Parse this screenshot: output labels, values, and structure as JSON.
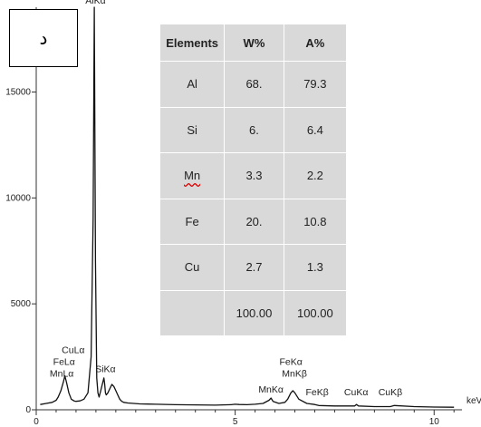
{
  "panel_label": "د",
  "table": {
    "headers": [
      "Elements",
      "W%",
      "A%"
    ],
    "rows": [
      [
        "Al",
        "68.",
        "79.3"
      ],
      [
        "Si",
        "6.",
        "6.4"
      ],
      [
        "Mn",
        "3.3",
        "2.2"
      ],
      [
        "Fe",
        "20.",
        "10.8"
      ],
      [
        "Cu",
        "2.7",
        "1.3"
      ],
      [
        "",
        "100.00",
        "100.00"
      ]
    ]
  },
  "chart_data": {
    "type": "line",
    "title": "",
    "xlabel": "keV",
    "ylabel": "",
    "xlim": [
      0,
      10.7
    ],
    "ylim": [
      0,
      19000
    ],
    "x_ticks": [
      0,
      5,
      10
    ],
    "y_ticks": [
      0,
      5000,
      10000,
      15000
    ],
    "grid": false,
    "series": [
      {
        "x": [
          0.1,
          0.25,
          0.4,
          0.5,
          0.55,
          0.62,
          0.68,
          0.72,
          0.76,
          0.82,
          0.88,
          0.95,
          1.0,
          1.1,
          1.2,
          1.3,
          1.38,
          1.43,
          1.46,
          1.49,
          1.52,
          1.55,
          1.58,
          1.62,
          1.66,
          1.7,
          1.72,
          1.74,
          1.76,
          1.8,
          1.85,
          1.9,
          1.95,
          2.0,
          2.05,
          2.1,
          2.15,
          2.2,
          2.3,
          2.45,
          2.6,
          2.8,
          3.0,
          3.5,
          4.0,
          4.5,
          4.9,
          5.0,
          5.1,
          5.3,
          5.5,
          5.7,
          5.85,
          5.9,
          5.95,
          6.1,
          6.25,
          6.32,
          6.4,
          6.45,
          6.5,
          6.6,
          6.8,
          7.0,
          7.1,
          7.5,
          8.0,
          8.05,
          8.1,
          8.5,
          8.9,
          9.0,
          9.5,
          10.0,
          10.5
        ],
        "y": [
          250,
          300,
          350,
          450,
          600,
          900,
          1300,
          1600,
          1300,
          800,
          500,
          420,
          400,
          420,
          500,
          800,
          2500,
          9000,
          19000,
          7000,
          1500,
          800,
          600,
          900,
          1200,
          1500,
          1200,
          800,
          700,
          800,
          1000,
          1200,
          1100,
          900,
          700,
          500,
          400,
          350,
          320,
          300,
          280,
          270,
          260,
          240,
          230,
          220,
          240,
          260,
          250,
          240,
          260,
          300,
          450,
          550,
          400,
          300,
          350,
          500,
          800,
          900,
          800,
          500,
          300,
          250,
          200,
          180,
          180,
          250,
          180,
          150,
          150,
          200,
          150,
          130,
          120
        ]
      }
    ],
    "peak_labels": [
      {
        "text": "AlKα",
        "x": 1.49,
        "y": 19000
      },
      {
        "text": "CuLα",
        "x": 0.93,
        "y": 2500
      },
      {
        "text": "FeLα",
        "x": 0.7,
        "y": 1950
      },
      {
        "text": "MnLα",
        "x": 0.64,
        "y": 1400
      },
      {
        "text": "SiKα",
        "x": 1.74,
        "y": 1600
      },
      {
        "text": "FeKα",
        "x": 6.4,
        "y": 1950
      },
      {
        "text": "MnKβ",
        "x": 6.49,
        "y": 1400
      },
      {
        "text": "MnKα",
        "x": 5.9,
        "y": 650
      },
      {
        "text": "FeKβ",
        "x": 7.06,
        "y": 520
      },
      {
        "text": "CuKα",
        "x": 8.04,
        "y": 520
      },
      {
        "text": "CuKβ",
        "x": 8.9,
        "y": 520
      }
    ]
  }
}
